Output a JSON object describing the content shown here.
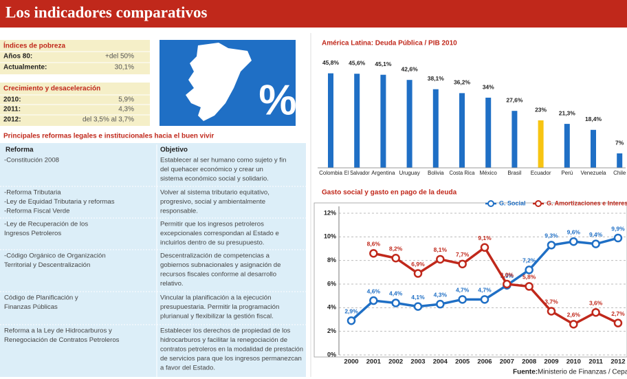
{
  "header": {
    "title": "Los indicadores comparativos"
  },
  "poverty": {
    "title": "Índices de pobreza",
    "rows": [
      [
        "Años 80:",
        "+del 50%"
      ],
      [
        "Actualmente:",
        "30,1%"
      ]
    ]
  },
  "growth": {
    "title": "Crecimiento y desaceleración",
    "rows": [
      [
        "2010:",
        "5,9%"
      ],
      [
        "2011:",
        "4,3%"
      ],
      [
        "2012:",
        "del 3,5% al 3,7%"
      ]
    ]
  },
  "map_label": "%",
  "reforms": {
    "title": "Principales reformas legales e institucionales hacia el buen vivir",
    "headers": [
      "Reforma",
      "Objetivo"
    ],
    "rows": [
      [
        [
          "-Constitución 2008"
        ],
        [
          "Establecer al ser humano como sujeto y fin",
          "del quehacer económico y crear un",
          "sistema económico social y solidario."
        ]
      ],
      [
        [
          "-Reforma Tributaria",
          "-Ley de Equidad Tributaria y reformas",
          "-Reforma Fiscal Verde"
        ],
        [
          "Volver al sistema tributario equitativo,",
          "progresivo, social y ambientalmente",
          "responsable."
        ]
      ],
      [
        [
          "-Ley de Recuperación de los",
          "Ingresos Petroleros"
        ],
        [
          "Permitir que los ingresos petroleros",
          "excepcionales correspondan al Estado e",
          "incluirlos dentro de su presupuesto."
        ]
      ],
      [
        [
          "-Código Orgánico de Organización",
          "Territorial y Descentralización"
        ],
        [
          "Descentralización de competencias a",
          "gobiernos subnacionales y asignación de",
          "recursos fiscales conforme al desarrollo",
          "relativo."
        ]
      ],
      [
        [
          "Código de Planificación y",
          "Finanzas Públicas"
        ],
        [
          "Vincular la planificación a la ejecución",
          "presupuestaria. Permitir la programación",
          "plurianual y flexibilizar la gestión fiscal."
        ]
      ],
      [
        [
          "Reforma a la Ley de Hidrocarburos  y",
          "Renegociación de Contratos Petroleros"
        ],
        [
          "Establecer los derechos de propiedad de los",
          "hidrocarburos y facilitar la  renegociación de",
          "contratos petroleros en la modalidad de prestación",
          "de servicios para que los ingresos permanezcan",
          "a favor del Estado."
        ]
      ]
    ]
  },
  "chart_data": [
    {
      "type": "bar",
      "title": "América Latina: Deuda Pública / PIB  2010",
      "categories": [
        "Colombia",
        "El Salvador",
        "Argentina",
        "Uruguay",
        "Bolivia",
        "Costa Rica",
        "México",
        "Brasil",
        "Ecuador",
        "Perú",
        "Venezuela",
        "Chile"
      ],
      "values": [
        45.8,
        45.6,
        45.1,
        42.6,
        38.1,
        36.2,
        34,
        27.6,
        23,
        21.3,
        18.4,
        7
      ],
      "value_labels": [
        "45,8%",
        "45,6%",
        "45,1%",
        "42,6%",
        "38,1%",
        "36,2%",
        "34%",
        "27,6%",
        "23%",
        "21,3%",
        "18,4%",
        "7%"
      ],
      "colors": [
        "#1f6fc5",
        "#1f6fc5",
        "#1f6fc5",
        "#1f6fc5",
        "#1f6fc5",
        "#1f6fc5",
        "#1f6fc5",
        "#1f6fc5",
        "#f7c412",
        "#1f6fc5",
        "#1f6fc5",
        "#1f6fc5"
      ]
    },
    {
      "type": "line",
      "title": "Gasto social y gasto en pago de la deuda",
      "categories": [
        "2000",
        "2001",
        "2002",
        "2003",
        "2004",
        "2005",
        "2006",
        "2007",
        "2008",
        "2009",
        "2010",
        "2011",
        "2012"
      ],
      "series": [
        {
          "name": "G. Social",
          "color": "#1f6fc5",
          "values": [
            2.9,
            4.6,
            4.4,
            4.1,
            4.3,
            4.7,
            4.7,
            5.9,
            7.2,
            9.3,
            9.6,
            9.4,
            9.9
          ],
          "value_labels": [
            "2,9%",
            "4,6%",
            "4,4%",
            "4,1%",
            "4,3%",
            "4,7%",
            "4,7%",
            "5,9%",
            "7,2%",
            "9,3%",
            "9,6%",
            "9,4%",
            "9,9%"
          ]
        },
        {
          "name": "G. Amortizaciones e Intereses",
          "color": "#c0281b",
          "values": [
            null,
            8.6,
            8.2,
            6.9,
            8.1,
            7.7,
            9.1,
            6.0,
            5.8,
            3.7,
            2.6,
            3.6,
            2.7
          ],
          "value_labels": [
            null,
            "8,6%",
            "8,2%",
            "6,9%",
            "8,1%",
            "7,7%",
            "9,1%",
            "6,0%",
            "5,8%",
            "3,7%",
            "2,6%",
            "3,6%",
            "2,7%"
          ]
        }
      ],
      "ylim": [
        0,
        12
      ],
      "yticks": [
        {
          "value": 0,
          "label": "0%"
        },
        {
          "value": 2,
          "label": "2%"
        },
        {
          "value": 4,
          "label": "4%"
        },
        {
          "value": 6,
          "label": "6%"
        },
        {
          "value": 8,
          "label": "8%"
        },
        {
          "value": 10,
          "label": "10%"
        },
        {
          "value": 12,
          "label": "12%"
        }
      ],
      "grid": true,
      "legend": "top-right",
      "source_label": "Fuente:",
      "source": "Ministerio de Finanzas / Cepal"
    }
  ]
}
